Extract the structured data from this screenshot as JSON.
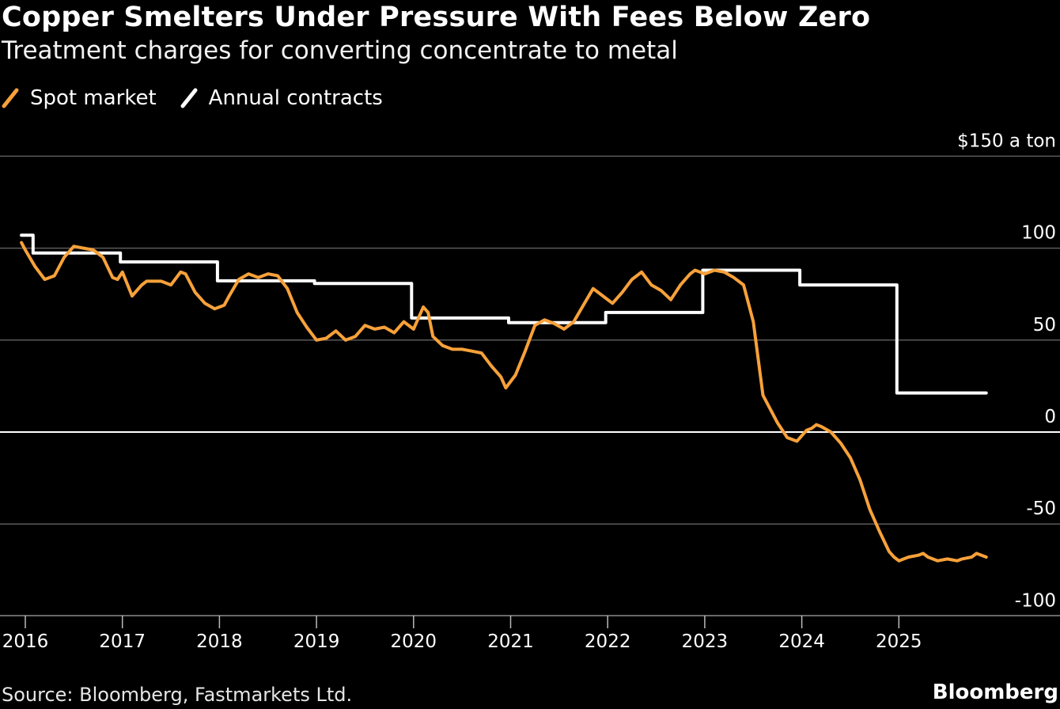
{
  "header": {
    "title": "Copper Smelters Under Pressure With Fees Below Zero",
    "subtitle": "Treatment charges for converting concentrate to metal"
  },
  "footer": {
    "source": "Source: Bloomberg, Fastmarkets Ltd.",
    "logo": "Bloomberg"
  },
  "colors": {
    "background": "#000000",
    "spot": "#f7a13a",
    "annual": "#ffffff",
    "grid": "#5a5a5a",
    "zero_line": "#ffffff"
  },
  "chart_data": {
    "type": "line",
    "title": "Copper Smelters Under Pressure With Fees Below Zero",
    "subtitle": "Treatment charges for converting concentrate to metal",
    "xlabel": "",
    "ylabel": "",
    "x_range": [
      2016,
      2026
    ],
    "y_range": [
      -100,
      150
    ],
    "y_ticks": [
      {
        "value": 150,
        "label": "$150 a ton"
      },
      {
        "value": 100,
        "label": "100"
      },
      {
        "value": 50,
        "label": "50"
      },
      {
        "value": 0,
        "label": "0"
      },
      {
        "value": -50,
        "label": "-50"
      },
      {
        "value": -100,
        "label": "-100"
      }
    ],
    "x_ticks": [
      {
        "value": 2016,
        "label": "2016"
      },
      {
        "value": 2017,
        "label": "2017"
      },
      {
        "value": 2018,
        "label": "2018"
      },
      {
        "value": 2019,
        "label": "2019"
      },
      {
        "value": 2020,
        "label": "2020"
      },
      {
        "value": 2021,
        "label": "2021"
      },
      {
        "value": 2022,
        "label": "2022"
      },
      {
        "value": 2023,
        "label": "2023"
      },
      {
        "value": 2024,
        "label": "2024"
      },
      {
        "value": 2025,
        "label": "2025"
      }
    ],
    "grid": true,
    "legend": "top-left",
    "series": [
      {
        "name": "Spot market",
        "color": "#f7a13a",
        "shape": "line",
        "x": [
          2015.96,
          2016.0,
          2016.1,
          2016.2,
          2016.3,
          2016.4,
          2016.5,
          2016.6,
          2016.7,
          2016.8,
          2016.9,
          2016.95,
          2017.0,
          2017.1,
          2017.2,
          2017.25,
          2017.4,
          2017.5,
          2017.6,
          2017.65,
          2017.75,
          2017.85,
          2017.95,
          2018.0,
          2018.05,
          2018.1,
          2018.2,
          2018.3,
          2018.4,
          2018.5,
          2018.6,
          2018.7,
          2018.8,
          2018.9,
          2019.0,
          2019.1,
          2019.2,
          2019.3,
          2019.4,
          2019.5,
          2019.6,
          2019.7,
          2019.8,
          2019.9,
          2020.0,
          2020.1,
          2020.15,
          2020.2,
          2020.3,
          2020.4,
          2020.5,
          2020.6,
          2020.7,
          2020.8,
          2020.9,
          2020.95,
          2021.05,
          2021.15,
          2021.25,
          2021.35,
          2021.45,
          2021.55,
          2021.65,
          2021.75,
          2021.85,
          2021.95,
          2022.05,
          2022.15,
          2022.25,
          2022.35,
          2022.45,
          2022.55,
          2022.65,
          2022.75,
          2022.85,
          2022.9,
          2023.0,
          2023.1,
          2023.2,
          2023.3,
          2023.4,
          2023.5,
          2023.6,
          2023.7,
          2023.75,
          2023.85,
          2023.95,
          2024.0,
          2024.05,
          2024.1,
          2024.15,
          2024.2,
          2024.3,
          2024.4,
          2024.5,
          2024.6,
          2024.7,
          2024.8,
          2024.9,
          2024.95,
          2025.0,
          2025.1,
          2025.2,
          2025.25,
          2025.3,
          2025.4,
          2025.5,
          2025.6,
          2025.65,
          2025.75,
          2025.8,
          2025.9
        ],
        "y": [
          103,
          99,
          90,
          83,
          85,
          95,
          101,
          100,
          99,
          95,
          84,
          83,
          87,
          74,
          80,
          82,
          82,
          80,
          87,
          86,
          76,
          70,
          67,
          68,
          69,
          74,
          83,
          86,
          84,
          86,
          85,
          78,
          65,
          57,
          50,
          51,
          55,
          50,
          52,
          58,
          56,
          57,
          54,
          60,
          56,
          68,
          65,
          52,
          47,
          45,
          45,
          44,
          43,
          36,
          30,
          24,
          31,
          44,
          58,
          61,
          59,
          56,
          60,
          69,
          78,
          74,
          70,
          76,
          83,
          87,
          80,
          77,
          72,
          80,
          86,
          88,
          86,
          88,
          87,
          84,
          80,
          60,
          20,
          10,
          5,
          -3,
          -5,
          -2,
          1,
          2,
          4,
          3,
          0,
          -6,
          -14,
          -26,
          -42,
          -54,
          -65,
          -68,
          -70,
          -68,
          -67,
          -66,
          -68,
          -70,
          -69,
          -70,
          -69,
          -68,
          -66,
          -68
        ]
      },
      {
        "name": "Annual contracts",
        "color": "#ffffff",
        "shape": "step",
        "x": [
          2015.96,
          2016.08,
          2016.08,
          2016.98,
          2016.98,
          2017.98,
          2017.98,
          2018.98,
          2018.98,
          2019.98,
          2019.98,
          2020.98,
          2020.98,
          2021.98,
          2021.98,
          2022.98,
          2022.98,
          2023.98,
          2023.98,
          2024.98,
          2024.98,
          2025.9
        ],
        "y": [
          107,
          107,
          97.35,
          97.35,
          92.5,
          92.5,
          82.25,
          82.25,
          80.8,
          80.8,
          62,
          62,
          59.5,
          59.5,
          65,
          65,
          88,
          88,
          80,
          80,
          21.25,
          21.25
        ]
      }
    ]
  }
}
